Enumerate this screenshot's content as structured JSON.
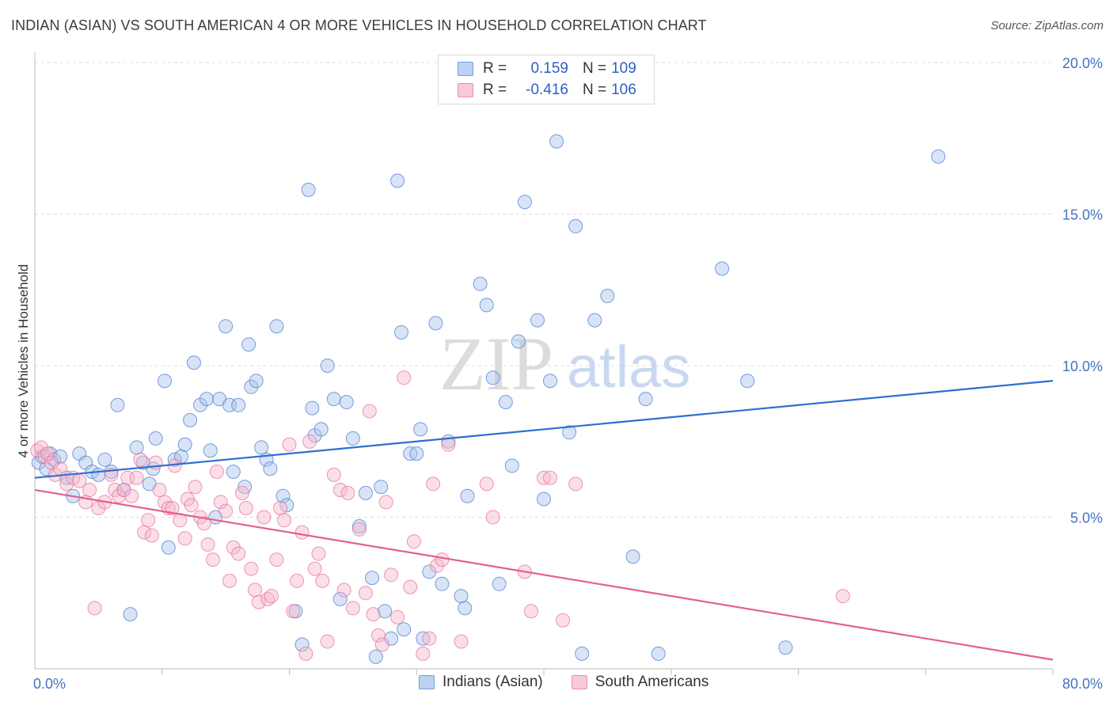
{
  "header": {
    "title": "INDIAN (ASIAN) VS SOUTH AMERICAN 4 OR MORE VEHICLES IN HOUSEHOLD CORRELATION CHART",
    "source": "Source: ZipAtlas.com"
  },
  "watermark": {
    "zip": "ZIP",
    "atlas": "atlas"
  },
  "legend": {
    "rows": [
      {
        "r_label": "R =",
        "r_value": "0.159",
        "n_label": "N =",
        "n_value": "109",
        "color": "#a9c4ec"
      },
      {
        "r_label": "R =",
        "r_value": "-0.416",
        "n_label": "N =",
        "n_value": "106",
        "color": "#f5b8cb"
      }
    ]
  },
  "bottom_legend": {
    "items": [
      {
        "label": "Indians (Asian)",
        "color": "#a9c4ec"
      },
      {
        "label": "South Americans",
        "color": "#f5b8cb"
      }
    ]
  },
  "chart_data": {
    "type": "scatter",
    "title": "INDIAN (ASIAN) VS SOUTH AMERICAN 4 OR MORE VEHICLES IN HOUSEHOLD CORRELATION CHART",
    "ylabel": "4 or more Vehicles in Household",
    "xlabel": "",
    "xlim": [
      0,
      80
    ],
    "ylim": [
      0,
      20
    ],
    "x_tick_labels": [
      "0.0%",
      "80.0%"
    ],
    "y_ticks": [
      5,
      10,
      15,
      20
    ],
    "y_tick_labels": [
      "5.0%",
      "10.0%",
      "15.0%",
      "20.0%"
    ],
    "grid": true,
    "legend_position": "top-center",
    "series": [
      {
        "name": "Indians (Asian)",
        "color": "#4a7fd4",
        "fill": "#a9c4ec",
        "trend": {
          "x": [
            0,
            80
          ],
          "y": [
            6.3,
            9.5
          ]
        },
        "points": [
          [
            0.3,
            6.8
          ],
          [
            0.6,
            7.0
          ],
          [
            0.9,
            6.6
          ],
          [
            1.2,
            7.1
          ],
          [
            1.5,
            6.9
          ],
          [
            2.0,
            7.0
          ],
          [
            2.5,
            6.3
          ],
          [
            3.0,
            5.7
          ],
          [
            3.5,
            7.1
          ],
          [
            4.0,
            6.8
          ],
          [
            4.5,
            6.5
          ],
          [
            5.0,
            6.4
          ],
          [
            5.5,
            6.9
          ],
          [
            6.0,
            6.5
          ],
          [
            6.5,
            8.7
          ],
          [
            7.0,
            5.9
          ],
          [
            7.5,
            1.8
          ],
          [
            8.0,
            7.3
          ],
          [
            8.5,
            6.8
          ],
          [
            9.0,
            6.1
          ],
          [
            9.3,
            6.6
          ],
          [
            9.5,
            7.6
          ],
          [
            10.2,
            9.5
          ],
          [
            10.5,
            4.0
          ],
          [
            11.0,
            6.9
          ],
          [
            11.5,
            7.0
          ],
          [
            11.8,
            7.4
          ],
          [
            12.2,
            8.2
          ],
          [
            12.5,
            10.1
          ],
          [
            13.0,
            8.7
          ],
          [
            13.5,
            8.9
          ],
          [
            13.8,
            7.2
          ],
          [
            14.2,
            5.0
          ],
          [
            14.5,
            8.9
          ],
          [
            15.0,
            11.3
          ],
          [
            15.3,
            8.7
          ],
          [
            15.6,
            6.5
          ],
          [
            16.0,
            8.7
          ],
          [
            16.5,
            6.0
          ],
          [
            16.8,
            10.7
          ],
          [
            17.0,
            9.3
          ],
          [
            17.4,
            9.5
          ],
          [
            17.8,
            7.3
          ],
          [
            18.2,
            6.9
          ],
          [
            18.5,
            6.6
          ],
          [
            19.0,
            11.3
          ],
          [
            19.5,
            5.7
          ],
          [
            19.8,
            5.4
          ],
          [
            20.5,
            1.9
          ],
          [
            21.0,
            0.8
          ],
          [
            21.5,
            15.8
          ],
          [
            21.8,
            8.6
          ],
          [
            22.0,
            7.7
          ],
          [
            22.5,
            7.9
          ],
          [
            23.0,
            10.0
          ],
          [
            23.5,
            8.9
          ],
          [
            24.0,
            2.3
          ],
          [
            24.5,
            8.8
          ],
          [
            25.0,
            7.6
          ],
          [
            25.5,
            4.7
          ],
          [
            26.0,
            5.8
          ],
          [
            26.5,
            3.0
          ],
          [
            26.8,
            0.4
          ],
          [
            27.2,
            6.0
          ],
          [
            27.5,
            1.9
          ],
          [
            28.0,
            1.0
          ],
          [
            28.5,
            16.1
          ],
          [
            28.8,
            11.1
          ],
          [
            29.0,
            1.3
          ],
          [
            29.5,
            7.1
          ],
          [
            30.0,
            7.1
          ],
          [
            30.3,
            7.9
          ],
          [
            30.5,
            1.0
          ],
          [
            31.0,
            3.2
          ],
          [
            31.5,
            11.4
          ],
          [
            32.0,
            2.8
          ],
          [
            32.5,
            7.5
          ],
          [
            33.5,
            2.4
          ],
          [
            33.8,
            2.0
          ],
          [
            34.0,
            5.7
          ],
          [
            35.0,
            12.7
          ],
          [
            35.5,
            12.0
          ],
          [
            36.0,
            9.6
          ],
          [
            36.5,
            2.8
          ],
          [
            37.0,
            8.8
          ],
          [
            37.5,
            6.7
          ],
          [
            38.0,
            10.8
          ],
          [
            38.5,
            15.4
          ],
          [
            39.5,
            11.5
          ],
          [
            40.0,
            5.6
          ],
          [
            40.5,
            9.5
          ],
          [
            41.0,
            17.4
          ],
          [
            42.0,
            7.8
          ],
          [
            42.5,
            14.6
          ],
          [
            43.0,
            0.5
          ],
          [
            44.0,
            11.5
          ],
          [
            45.0,
            12.3
          ],
          [
            47.0,
            3.7
          ],
          [
            48.0,
            8.9
          ],
          [
            49.0,
            0.5
          ],
          [
            54.0,
            13.2
          ],
          [
            56.0,
            9.5
          ],
          [
            59.0,
            0.7
          ],
          [
            71.0,
            16.9
          ]
        ]
      },
      {
        "name": "South Americans",
        "color": "#e9739b",
        "fill": "#f5b8cb",
        "trend": {
          "x": [
            0,
            80
          ],
          "y": [
            5.9,
            0.3
          ]
        },
        "points": [
          [
            0.2,
            7.2
          ],
          [
            0.5,
            7.3
          ],
          [
            0.8,
            7.0
          ],
          [
            1.0,
            7.1
          ],
          [
            1.3,
            6.8
          ],
          [
            1.6,
            6.4
          ],
          [
            2.0,
            6.6
          ],
          [
            2.5,
            6.1
          ],
          [
            3.0,
            6.3
          ],
          [
            3.5,
            6.2
          ],
          [
            4.0,
            5.5
          ],
          [
            4.3,
            5.9
          ],
          [
            4.7,
            2.0
          ],
          [
            5.0,
            5.3
          ],
          [
            5.5,
            5.5
          ],
          [
            6.0,
            6.4
          ],
          [
            6.3,
            5.9
          ],
          [
            6.6,
            5.7
          ],
          [
            7.0,
            5.9
          ],
          [
            7.3,
            6.3
          ],
          [
            7.6,
            5.7
          ],
          [
            8.0,
            6.3
          ],
          [
            8.3,
            6.9
          ],
          [
            8.6,
            4.5
          ],
          [
            8.9,
            4.9
          ],
          [
            9.2,
            4.4
          ],
          [
            9.5,
            6.8
          ],
          [
            9.8,
            5.9
          ],
          [
            10.2,
            5.5
          ],
          [
            10.5,
            5.3
          ],
          [
            10.8,
            5.3
          ],
          [
            11.0,
            6.7
          ],
          [
            11.4,
            4.9
          ],
          [
            11.8,
            4.3
          ],
          [
            12.0,
            5.6
          ],
          [
            12.3,
            5.4
          ],
          [
            12.6,
            6.0
          ],
          [
            13.0,
            5.0
          ],
          [
            13.3,
            4.8
          ],
          [
            13.6,
            4.1
          ],
          [
            14.0,
            3.6
          ],
          [
            14.3,
            6.5
          ],
          [
            14.6,
            5.5
          ],
          [
            15.0,
            5.2
          ],
          [
            15.3,
            2.9
          ],
          [
            15.6,
            4.0
          ],
          [
            16.0,
            3.8
          ],
          [
            16.3,
            5.8
          ],
          [
            16.6,
            5.3
          ],
          [
            17.0,
            3.3
          ],
          [
            17.3,
            2.6
          ],
          [
            17.6,
            2.2
          ],
          [
            18.0,
            5.0
          ],
          [
            18.3,
            2.3
          ],
          [
            18.6,
            2.4
          ],
          [
            19.0,
            3.6
          ],
          [
            19.3,
            5.3
          ],
          [
            19.6,
            4.9
          ],
          [
            20.0,
            7.4
          ],
          [
            20.3,
            1.9
          ],
          [
            20.6,
            2.9
          ],
          [
            21.0,
            4.5
          ],
          [
            21.3,
            0.5
          ],
          [
            21.6,
            7.5
          ],
          [
            22.0,
            3.3
          ],
          [
            22.3,
            3.8
          ],
          [
            22.6,
            2.9
          ],
          [
            23.0,
            0.9
          ],
          [
            23.5,
            6.4
          ],
          [
            24.0,
            5.9
          ],
          [
            24.3,
            2.6
          ],
          [
            24.6,
            5.8
          ],
          [
            25.0,
            2.0
          ],
          [
            25.5,
            4.6
          ],
          [
            26.0,
            2.5
          ],
          [
            26.3,
            8.5
          ],
          [
            26.6,
            1.8
          ],
          [
            27.0,
            1.1
          ],
          [
            27.3,
            0.8
          ],
          [
            27.6,
            5.5
          ],
          [
            28.0,
            3.1
          ],
          [
            28.5,
            1.7
          ],
          [
            29.0,
            9.6
          ],
          [
            29.5,
            2.7
          ],
          [
            29.8,
            4.2
          ],
          [
            30.5,
            0.5
          ],
          [
            31.0,
            1.0
          ],
          [
            31.3,
            6.1
          ],
          [
            31.6,
            3.4
          ],
          [
            32.0,
            3.6
          ],
          [
            32.5,
            7.4
          ],
          [
            33.5,
            0.9
          ],
          [
            35.5,
            6.1
          ],
          [
            36.0,
            5.0
          ],
          [
            38.5,
            3.2
          ],
          [
            39.0,
            1.9
          ],
          [
            40.0,
            6.3
          ],
          [
            40.5,
            6.3
          ],
          [
            41.5,
            1.6
          ],
          [
            42.5,
            6.1
          ],
          [
            63.5,
            2.4
          ]
        ]
      }
    ]
  }
}
